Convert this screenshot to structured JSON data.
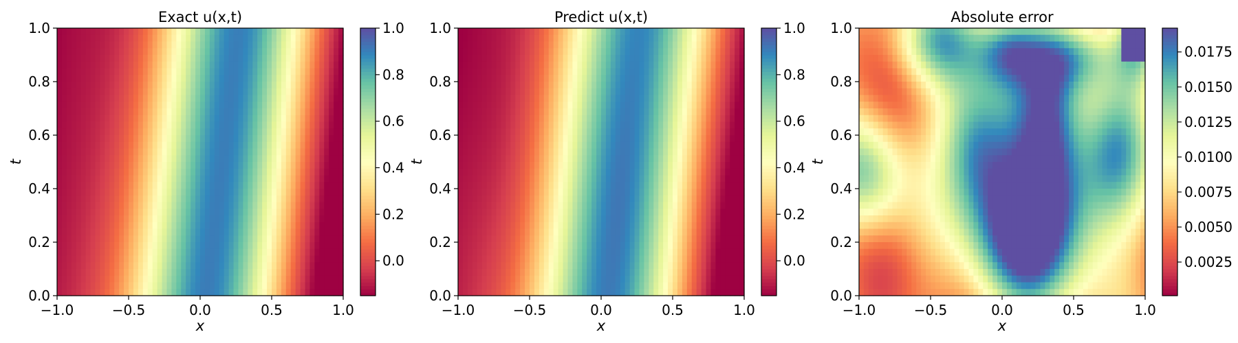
{
  "colormap": [
    "#9e0142",
    "#d53e4f",
    "#f46d43",
    "#fdae61",
    "#fee08b",
    "#ffffbf",
    "#e6f598",
    "#abdda4",
    "#66c2a5",
    "#3288bd",
    "#5e4fa2"
  ],
  "chart_data": [
    {
      "type": "heatmap",
      "title": "Exact u(x,t)",
      "xlabel": "x",
      "ylabel": "t",
      "xlim": [
        -1.0,
        1.0
      ],
      "ylim": [
        0.0,
        1.0
      ],
      "xticks": [
        "−1.0",
        "−0.5",
        "0.0",
        "0.5",
        "1.0"
      ],
      "yticks": [
        "0.0",
        "0.2",
        "0.4",
        "0.6",
        "0.8",
        "1.0"
      ],
      "field": "u",
      "vmin": -0.15,
      "vmax": 1.0,
      "colorbar_ticks": [
        "0.0",
        "0.2",
        "0.4",
        "0.6",
        "0.8",
        "1.0"
      ]
    },
    {
      "type": "heatmap",
      "title": "Predict u(x,t)",
      "xlabel": "x",
      "ylabel": "t",
      "xlim": [
        -1.0,
        1.0
      ],
      "ylim": [
        0.0,
        1.0
      ],
      "xticks": [
        "−1.0",
        "−0.5",
        "0.0",
        "0.5",
        "1.0"
      ],
      "yticks": [
        "0.0",
        "0.2",
        "0.4",
        "0.6",
        "0.8",
        "1.0"
      ],
      "field": "u",
      "vmin": -0.15,
      "vmax": 1.0,
      "colorbar_ticks": [
        "0.0",
        "0.2",
        "0.4",
        "0.6",
        "0.8",
        "1.0"
      ]
    },
    {
      "type": "heatmap",
      "title": "Absolute error",
      "xlabel": "x",
      "ylabel": "t",
      "xlim": [
        -1.0,
        1.0
      ],
      "ylim": [
        0.0,
        1.0
      ],
      "xticks": [
        "−1.0",
        "−0.5",
        "0.0",
        "0.5",
        "1.0"
      ],
      "yticks": [
        "0.0",
        "0.2",
        "0.4",
        "0.6",
        "0.8",
        "1.0"
      ],
      "field": "error",
      "vmin": 0.0001,
      "vmax": 0.0192,
      "colorbar_ticks": [
        "0.0025",
        "0.0050",
        "0.0075",
        "0.0100",
        "0.0125",
        "0.0150",
        "0.0175"
      ]
    }
  ]
}
